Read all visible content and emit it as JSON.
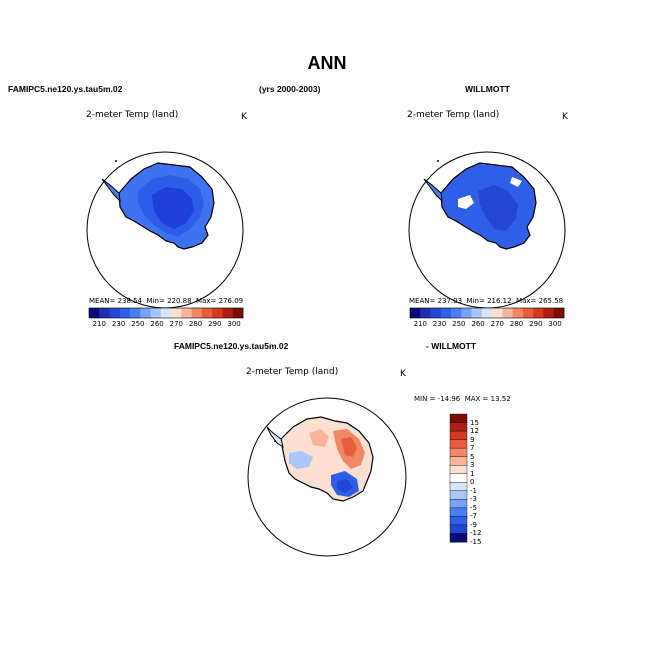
{
  "chart_data": [
    {
      "type": "heatmap",
      "title": "2-meter Temp (land)",
      "units": "K",
      "case": "FAMIPC5.ne120.ys.tau5m.02",
      "projection": "south polar stereographic",
      "stats": {
        "mean_label": "MEAN=",
        "mean": "238.54",
        "min_label": "Min=",
        "min": "220.88",
        "max_label": "Max=",
        "max": "276.09"
      },
      "colorbar": {
        "orientation": "horizontal",
        "ticks": [
          "210",
          "230",
          "250",
          "260",
          "270",
          "280",
          "290",
          "300"
        ]
      }
    },
    {
      "type": "heatmap",
      "title": "2-meter Temp (land)",
      "units": "K",
      "case": "WILLMOTT",
      "projection": "south polar stereographic",
      "stats": {
        "mean_label": "MEAN=",
        "mean": "237.03",
        "min_label": "Min=",
        "min": "216.12",
        "max_label": "Max=",
        "max": "265.58"
      },
      "colorbar": {
        "orientation": "horizontal",
        "ticks": [
          "210",
          "230",
          "250",
          "260",
          "270",
          "280",
          "290",
          "300"
        ]
      }
    },
    {
      "type": "heatmap",
      "title": "2-meter Temp (land)",
      "units": "K",
      "case": "FAMIPC5.ne120.ys.tau5m.02 - WILLMOTT",
      "projection": "south polar stereographic",
      "stats": {
        "min_label": "MIN =",
        "min": "-14.96",
        "max_label": "MAX =",
        "max": "13.52"
      },
      "colorbar": {
        "orientation": "vertical",
        "ticks": [
          "15",
          "12",
          "9",
          "7",
          "5",
          "3",
          "1",
          "0",
          "-1",
          "-3",
          "-5",
          "-7",
          "-9",
          "-12",
          "-15"
        ]
      }
    }
  ],
  "page": {
    "title": "ANN",
    "left_case": "FAMIPC5.ne120.ys.tau5m.02",
    "years": "(yrs 2000-2003)",
    "right_case": "WILLMOTT",
    "diff_case": "FAMIPC5.ne120.ys.tau5m.02",
    "diff_obs": "- WILLMOTT"
  },
  "colors": {
    "abs_scale": [
      "#0a0a7a",
      "#1e2eb0",
      "#2446d4",
      "#2f5fe6",
      "#4a7df0",
      "#79a2f4",
      "#a9c6f8",
      "#d8e6fc",
      "#fde0d2",
      "#f9b49a",
      "#f28766",
      "#e65e3b",
      "#d23a22",
      "#ae1e12",
      "#7e0c06"
    ],
    "diff_scale": [
      "#7e0c06",
      "#ae1e12",
      "#d23a22",
      "#e65e3b",
      "#f28766",
      "#f9b49a",
      "#fde0d2",
      "#ffffff",
      "#d8e6fc",
      "#a9c6f8",
      "#79a2f4",
      "#4a7df0",
      "#2f5fe6",
      "#2446d4",
      "#0a0a7a"
    ],
    "land_dark": "#1e3fd8",
    "land_mid": "#2c5ce8",
    "land_light": "#3e72f0"
  }
}
